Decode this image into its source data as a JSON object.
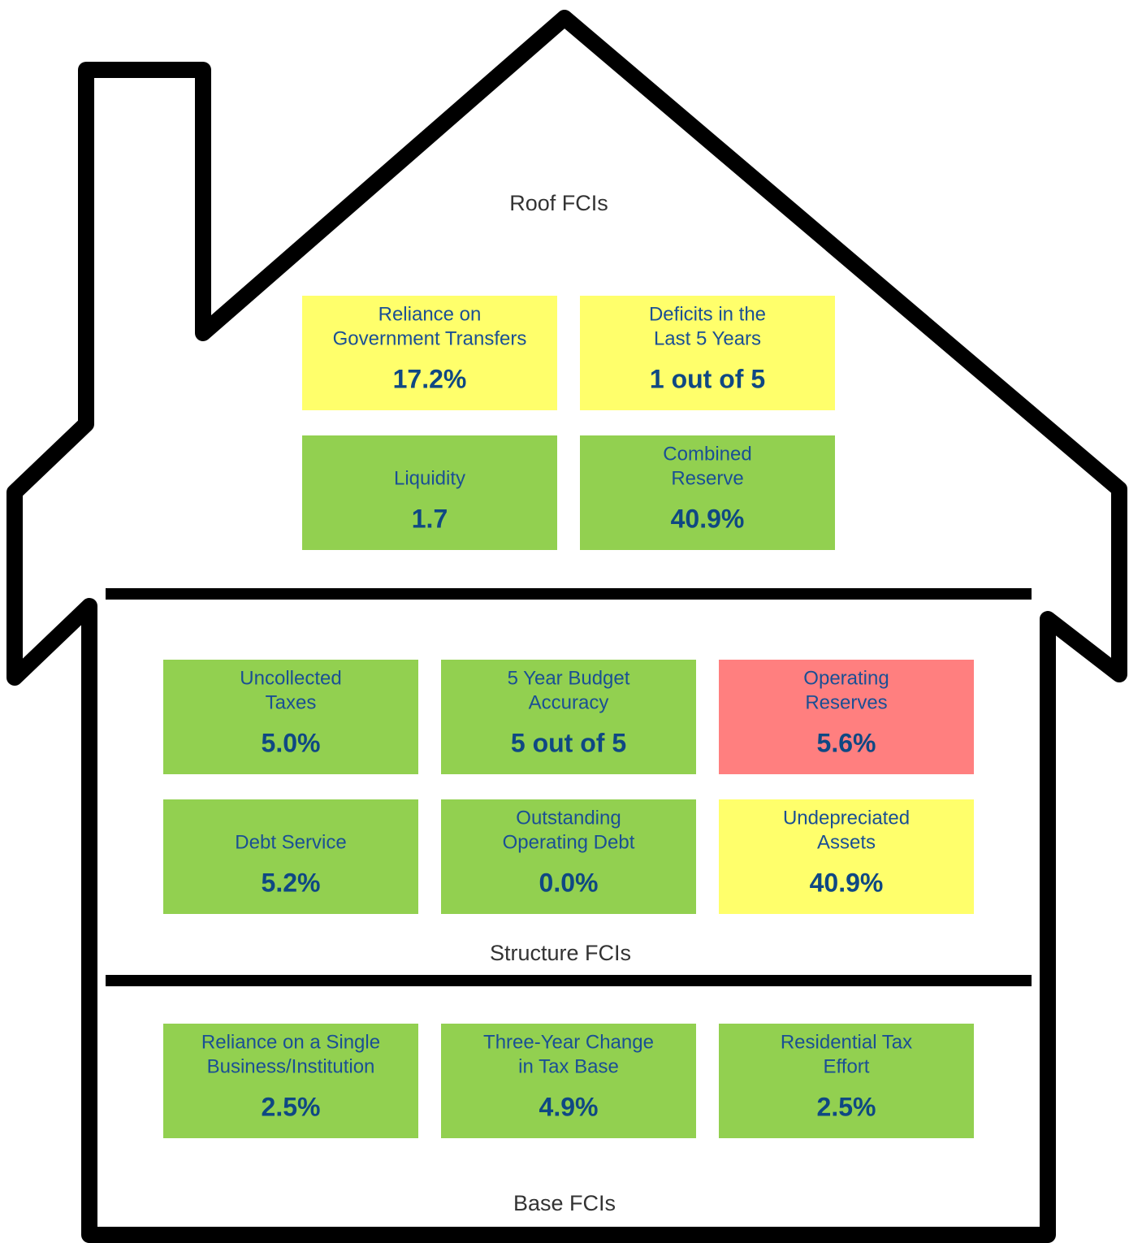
{
  "sections": [
    {
      "title": "Roof FCIs",
      "tiles": [
        {
          "label": [
            "Reliance on",
            "Government Transfers"
          ],
          "value": "17.2%",
          "color": "#ffff6b"
        },
        {
          "label": [
            "Deficits in the",
            "Last 5 Years"
          ],
          "value": "1 out of 5",
          "color": "#ffff6b"
        },
        {
          "label": [
            "Liquidity"
          ],
          "value": "1.7",
          "color": "#92d050"
        },
        {
          "label": [
            "Combined",
            "Reserve"
          ],
          "value": "40.9%",
          "color": "#92d050"
        }
      ]
    },
    {
      "title": "Structure FCIs",
      "tiles": [
        {
          "label": [
            "Uncollected",
            "Taxes"
          ],
          "value": "5.0%",
          "color": "#92d050"
        },
        {
          "label": [
            "5 Year Budget",
            "Accuracy"
          ],
          "value": "5 out of 5",
          "color": "#92d050"
        },
        {
          "label": [
            "Operating",
            "Reserves"
          ],
          "value": "5.6%",
          "color": "#ff7f7f"
        },
        {
          "label": [
            "Debt Service"
          ],
          "value": "5.2%",
          "color": "#92d050"
        },
        {
          "label": [
            "Outstanding",
            "Operating Debt"
          ],
          "value": "0.0%",
          "color": "#92d050"
        },
        {
          "label": [
            "Undepreciated",
            "Assets"
          ],
          "value": "40.9%",
          "color": "#ffff6b"
        }
      ]
    },
    {
      "title": "Base FCIs",
      "tiles": [
        {
          "label": [
            "Reliance on a Single",
            "Business/Institution"
          ],
          "value": "2.5%",
          "color": "#92d050"
        },
        {
          "label": [
            "Three-Year Change",
            "in Tax Base"
          ],
          "value": "4.9%",
          "color": "#92d050"
        },
        {
          "label": [
            "Residential Tax",
            "Effort"
          ],
          "value": "2.5%",
          "color": "#92d050"
        }
      ]
    }
  ]
}
